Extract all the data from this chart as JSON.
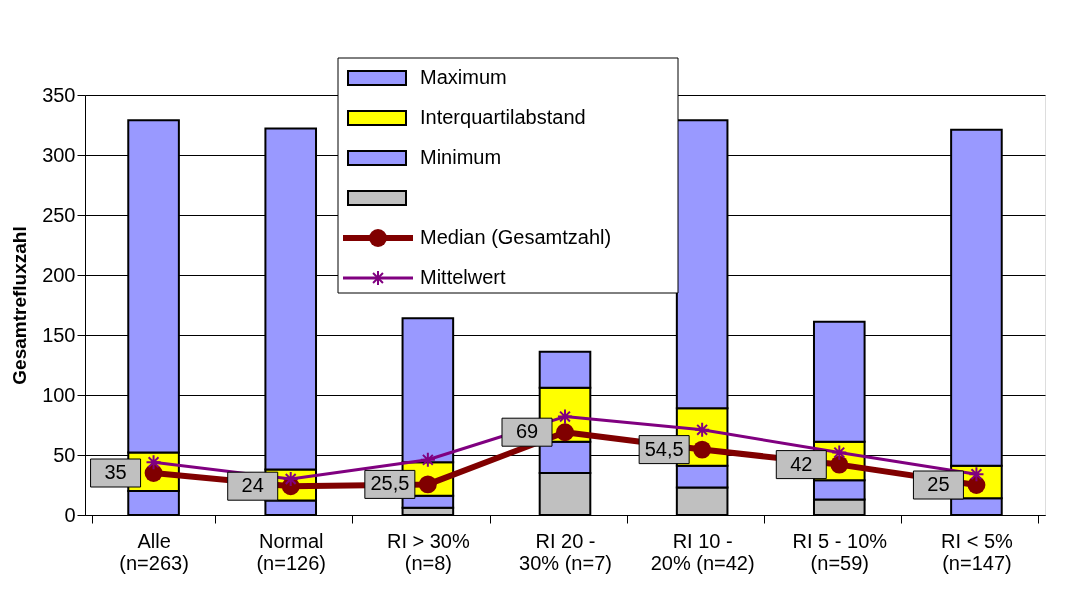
{
  "chart_data": {
    "type": "bar",
    "stacked": true,
    "ylabel": "Gesamtrefluxzahl",
    "categories": [
      "Alle (n=263)",
      "Normal (n=126)",
      "RI > 30% (n=8)",
      "RI 20 - 30% (n=7)",
      "RI 10 - 20% (n=42)",
      "RI 5 - 10% (n=59)",
      "RI < 5% (n=147)"
    ],
    "series": [
      {
        "color": "#c0c0c0",
        "values": [
          0,
          0,
          6,
          35,
          23,
          13,
          0
        ]
      },
      {
        "name": "Minimum",
        "color": "#9999ff",
        "values": [
          20,
          12,
          10,
          26,
          18,
          16,
          14
        ]
      },
      {
        "name": "Interquartilabstand",
        "color": "#ffff00",
        "values": [
          32,
          26,
          28,
          45,
          48,
          32,
          27
        ]
      },
      {
        "name": "Maximum",
        "color": "#9999ff",
        "values": [
          277,
          284,
          120,
          30,
          240,
          100,
          280
        ]
      },
      {
        "name": "Median (Gesamtzahl)",
        "type": "line",
        "color": "#800000",
        "marker": "circle",
        "values": [
          35,
          24,
          25.5,
          69,
          54.5,
          42,
          25
        ],
        "value_labels": [
          "35",
          "24",
          "25,5",
          "69",
          "54,5",
          "42",
          "25"
        ]
      },
      {
        "name": "Mittelwert",
        "type": "line",
        "color": "#800080",
        "marker": "cross",
        "values": [
          44,
          30,
          46,
          82,
          71,
          52,
          34
        ]
      }
    ],
    "ylim": [
      0,
      350
    ],
    "yticks": [
      0,
      50,
      100,
      150,
      200,
      250,
      300,
      350
    ],
    "grid": "y",
    "legend": "top"
  }
}
